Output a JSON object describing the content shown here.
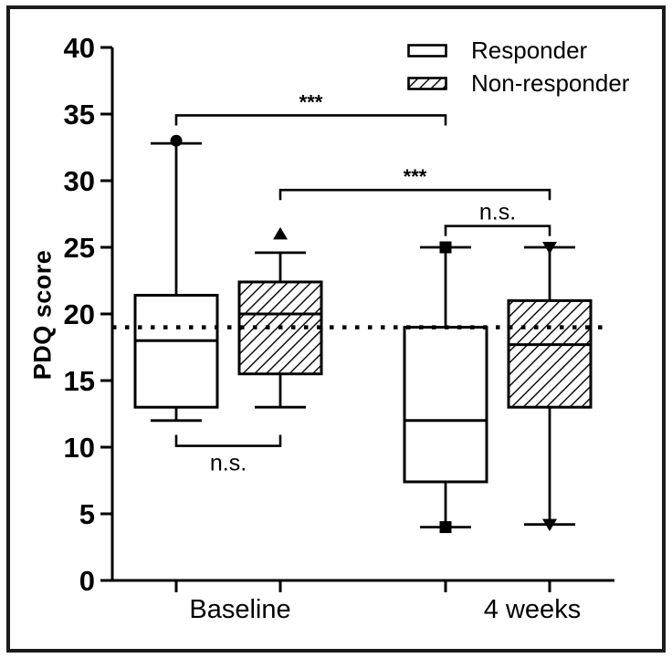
{
  "figure": {
    "background": "#ffffff",
    "frame_color": "#1b1b1b",
    "ink_color": "#000000"
  },
  "chart_data": {
    "type": "box",
    "title": "",
    "xlabel": "",
    "ylabel": "PDQ score",
    "ylim": [
      0,
      40
    ],
    "yticks": [
      0,
      5,
      10,
      15,
      20,
      25,
      30,
      35,
      40
    ],
    "grid": false,
    "categories": [
      "Baseline",
      "4 weeks"
    ],
    "series": [
      {
        "name": "Responder",
        "fill": "open",
        "boxes": [
          {
            "category": "Baseline",
            "whisker_low": 12,
            "q1": 13,
            "median": 18,
            "q3": 21.4,
            "whisker_high": 32.8,
            "top_marker": {
              "shape": "circle",
              "value": 33
            },
            "bottom_marker": null
          },
          {
            "category": "4 weeks",
            "whisker_low": 4,
            "q1": 7.4,
            "median": 12,
            "q3": 19,
            "whisker_high": 25,
            "top_marker": {
              "shape": "square",
              "value": 25
            },
            "bottom_marker": {
              "shape": "square",
              "value": 4
            }
          }
        ]
      },
      {
        "name": "Non-responder",
        "fill": "hatched",
        "boxes": [
          {
            "category": "Baseline",
            "whisker_low": 13,
            "q1": 15.5,
            "median": 20,
            "q3": 22.4,
            "whisker_high": 24.6,
            "top_marker": {
              "shape": "triangle-up",
              "value": 26
            },
            "bottom_marker": null
          },
          {
            "category": "4 weeks",
            "whisker_low": 4.2,
            "q1": 13,
            "median": 17.7,
            "q3": 21,
            "whisker_high": 25,
            "top_marker": {
              "shape": "triangle-down",
              "value": 25
            },
            "bottom_marker": {
              "shape": "triangle-down",
              "value": 4.2
            }
          }
        ]
      }
    ],
    "reference_line": {
      "value": 19,
      "style": "dotted"
    },
    "annotations": [
      {
        "label": "***",
        "from": {
          "category": 0,
          "series": 0
        },
        "to": {
          "category": 1,
          "series": 0
        },
        "y": 34.9,
        "orient": "down"
      },
      {
        "label": "***",
        "from": {
          "category": 0,
          "series": 1
        },
        "to": {
          "category": 1,
          "series": 1
        },
        "y": 29.3,
        "orient": "down"
      },
      {
        "label": "n.s.",
        "from": {
          "category": 1,
          "series": 0
        },
        "to": {
          "category": 1,
          "series": 1
        },
        "y": 26.6,
        "orient": "down"
      },
      {
        "label": "n.s.",
        "from": {
          "category": 0,
          "series": 0
        },
        "to": {
          "category": 0,
          "series": 1
        },
        "y": 10.1,
        "orient": "up"
      }
    ],
    "legend": [
      {
        "label": "Responder",
        "swatch": "open"
      },
      {
        "label": "Non-responder",
        "swatch": "hatched"
      }
    ]
  }
}
